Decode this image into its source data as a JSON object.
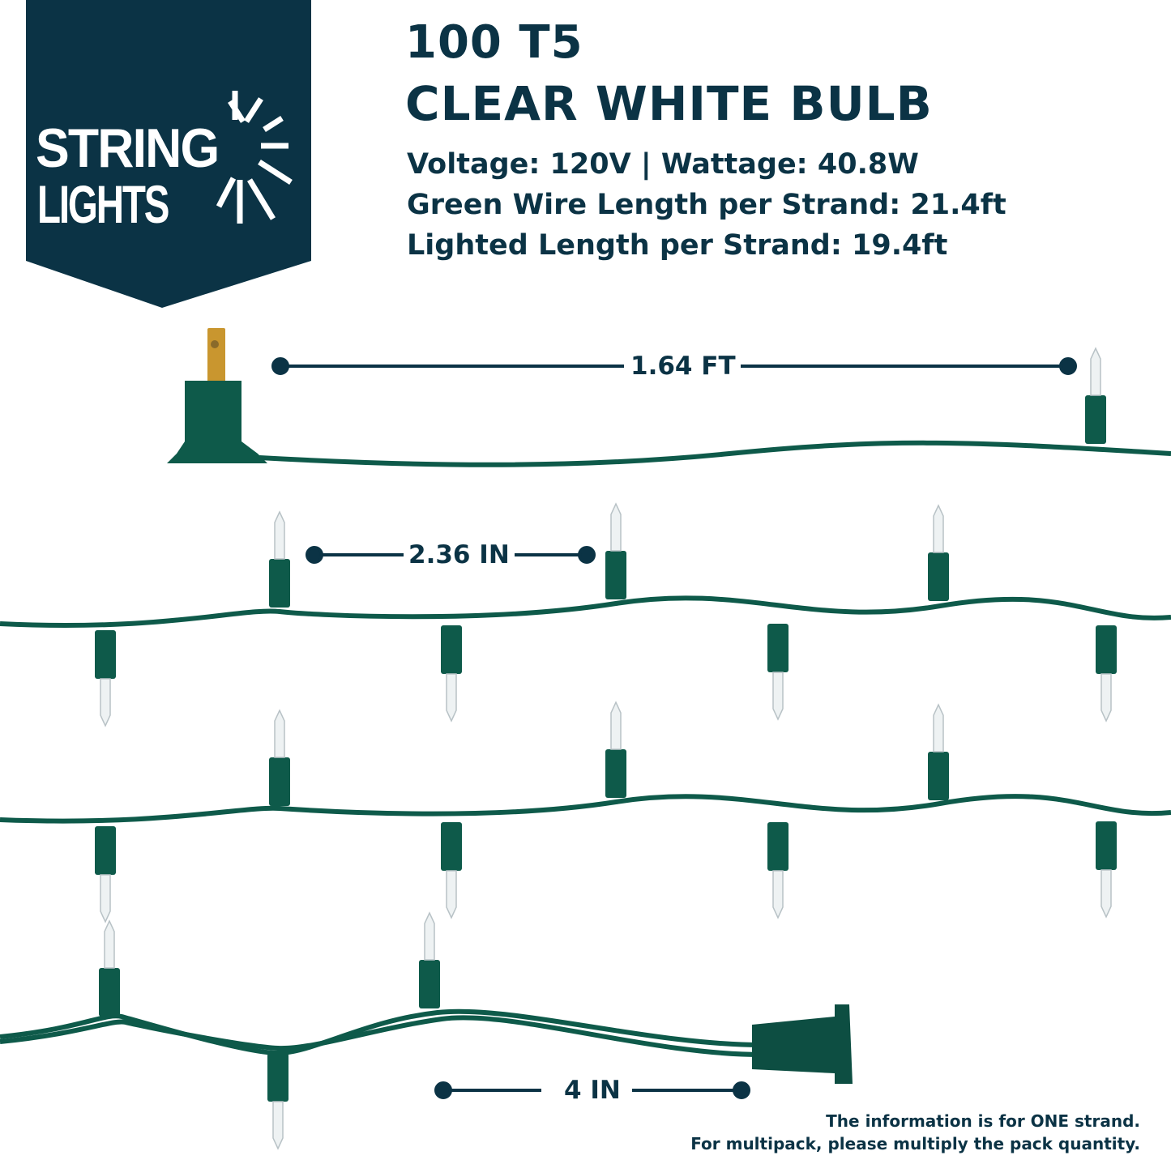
{
  "logo": {
    "line1": "STRING",
    "line2": "LIGHTS"
  },
  "title": {
    "line1": "100 T5",
    "line2": "CLEAR WHITE BULB"
  },
  "specs": [
    "Voltage: 120V | Wattage: 40.8W",
    "Green Wire Length per Strand: 21.4ft",
    "Lighted Length per Strand: 19.4ft"
  ],
  "dimensions": {
    "plug_to_first_bulb": "1.64 FT",
    "bulb_spacing": "2.36 IN",
    "end_lead": "4 IN"
  },
  "note": {
    "line1": "The information is for ONE strand.",
    "line2": "For multipack, please multiply the pack quantity."
  },
  "colors": {
    "navy": "#0b3345",
    "wire_green": "#0e5a4a",
    "plug_prong": "#c9962f"
  }
}
